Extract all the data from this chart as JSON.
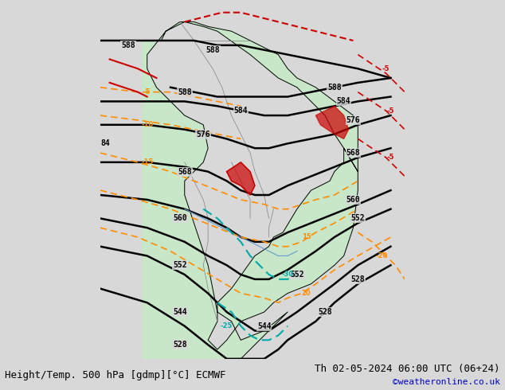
{
  "title_left": "Height/Temp. 500 hPa [gdmp][°C] ECMWF",
  "title_right": "Th 02-05-2024 06:00 UTC (06+24)",
  "credit": "©weatheronline.co.uk",
  "background_color": "#d8d8d8",
  "land_color": "#c8e6c8",
  "land_color2": "#b0d0b0",
  "border_color": "#000000",
  "fig_width": 6.34,
  "fig_height": 4.9,
  "dpi": 100,
  "geopotential_lines": {
    "color": "#000000",
    "linewidth": 1.5,
    "values": [
      528,
      544,
      552,
      560,
      568,
      576,
      584,
      588
    ]
  },
  "temp_lines_warm": {
    "color": "#cc0000",
    "linewidth": 1.2,
    "dashes": [
      4,
      2
    ]
  },
  "temp_lines_cold": {
    "color": "#ff8c00",
    "linewidth": 1.2,
    "dashes": [
      4,
      2
    ]
  },
  "rain_color": "#cc0000",
  "slp_color": "#0000cc",
  "font_size_title": 9,
  "font_size_credit": 8,
  "font_size_labels": 7
}
